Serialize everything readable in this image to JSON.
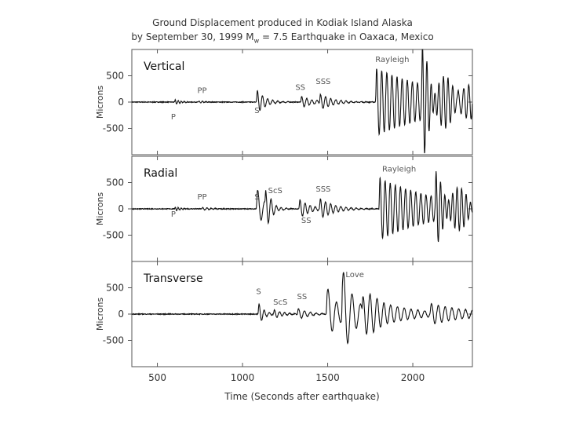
{
  "title": {
    "line1": "Ground Displacement produced in Kodiak Island Alaska",
    "line2_before": "by September 30, 1999 M",
    "line2_sub": "w",
    "line2_after": " = 7.5 Earthquake in Oaxaca, Mexico"
  },
  "chart_data": {
    "type": "line",
    "xlabel": "Time (Seconds after earthquake)",
    "xlim": [
      350,
      2350
    ],
    "x_ticks": [
      500,
      1000,
      1500,
      2000
    ],
    "ylim": [
      -1000,
      1000
    ],
    "y_ticks": [
      500,
      0,
      -500
    ],
    "panels": [
      {
        "name": "Vertical",
        "ylabel": "Microns",
        "annotations": [
          {
            "text": "P",
            "x": 580,
            "y": -330
          },
          {
            "text": "PP",
            "x": 735,
            "y": 170
          },
          {
            "text": "S",
            "x": 1070,
            "y": -210
          },
          {
            "text": "SS",
            "x": 1310,
            "y": 230
          },
          {
            "text": "SSS",
            "x": 1430,
            "y": 340
          },
          {
            "text": "Rayleigh",
            "x": 1780,
            "y": 760
          }
        ],
        "events": [
          {
            "t": 600,
            "amp": 60,
            "dur": 30,
            "period": 18
          },
          {
            "t": 740,
            "amp": 25,
            "dur": 40,
            "period": 20
          },
          {
            "t": 1080,
            "amp": 250,
            "dur": 50,
            "period": 30
          },
          {
            "t": 1340,
            "amp": 120,
            "dur": 70,
            "period": 30
          },
          {
            "t": 1450,
            "amp": 170,
            "dur": 80,
            "period": 30
          },
          {
            "t": 1780,
            "amp": 650,
            "dur": 420,
            "period": 30
          },
          {
            "t": 2050,
            "amp": 850,
            "dur": 120,
            "period": 25
          },
          {
            "t": 2260,
            "amp": 150,
            "dur": 150,
            "period": 30
          }
        ]
      },
      {
        "name": "Radial",
        "ylabel": "Microns",
        "annotations": [
          {
            "text": "P",
            "x": 580,
            "y": -150
          },
          {
            "text": "PP",
            "x": 735,
            "y": 180
          },
          {
            "text": "S",
            "x": 1070,
            "y": 180
          },
          {
            "text": "ScS",
            "x": 1150,
            "y": 300
          },
          {
            "text": "SSS",
            "x": 1430,
            "y": 330
          },
          {
            "text": "SS",
            "x": 1345,
            "y": -270
          },
          {
            "text": "Rayleigh",
            "x": 1820,
            "y": 710
          }
        ],
        "events": [
          {
            "t": 600,
            "amp": 50,
            "dur": 30,
            "period": 18
          },
          {
            "t": 760,
            "amp": 30,
            "dur": 60,
            "period": 25
          },
          {
            "t": 1080,
            "amp": 450,
            "dur": 40,
            "period": 40
          },
          {
            "t": 1130,
            "amp": 350,
            "dur": 40,
            "period": 30
          },
          {
            "t": 1330,
            "amp": 200,
            "dur": 60,
            "period": 30
          },
          {
            "t": 1450,
            "amp": 180,
            "dur": 90,
            "period": 30
          },
          {
            "t": 1800,
            "amp": 600,
            "dur": 350,
            "period": 30
          },
          {
            "t": 2130,
            "amp": 500,
            "dur": 220,
            "period": 25
          }
        ]
      },
      {
        "name": "Transverse",
        "ylabel": "Microns",
        "annotations": [
          {
            "text": "S",
            "x": 1080,
            "y": 380
          },
          {
            "text": "ScS",
            "x": 1180,
            "y": 180
          },
          {
            "text": "SS",
            "x": 1320,
            "y": 280
          },
          {
            "text": "Love",
            "x": 1605,
            "y": 700
          }
        ],
        "events": [
          {
            "t": 1090,
            "amp": 250,
            "dur": 30,
            "period": 30
          },
          {
            "t": 1180,
            "amp": 80,
            "dur": 60,
            "period": 30
          },
          {
            "t": 1320,
            "amp": 120,
            "dur": 60,
            "period": 35
          },
          {
            "t": 1490,
            "amp": 550,
            "dur": 70,
            "period": 50
          },
          {
            "t": 1580,
            "amp": 900,
            "dur": 70,
            "period": 50
          },
          {
            "t": 1700,
            "amp": 400,
            "dur": 200,
            "period": 40
          },
          {
            "t": 2100,
            "amp": 150,
            "dur": 250,
            "period": 40
          }
        ]
      }
    ]
  }
}
